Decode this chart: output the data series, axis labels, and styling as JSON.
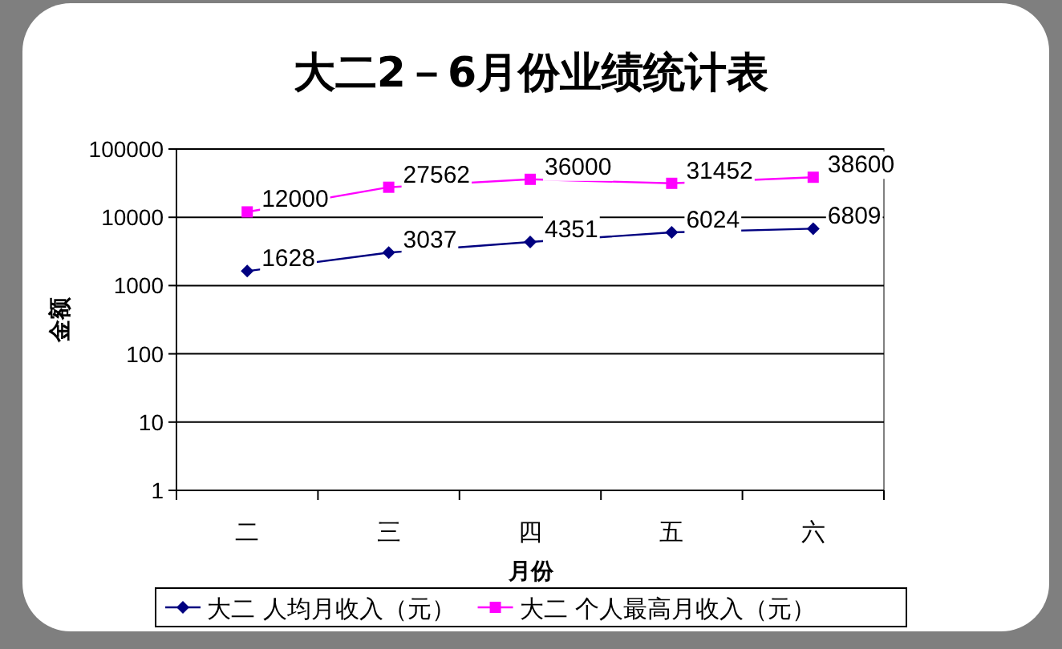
{
  "chart_data": {
    "type": "line",
    "title": "大二2－6月份业绩统计表",
    "xlabel": "月份",
    "ylabel": "金额",
    "categories": [
      "二",
      "三",
      "四",
      "五",
      "六"
    ],
    "series": [
      {
        "name": "大二 人均月收入（元）",
        "color": "#000080",
        "marker": "diamond",
        "values": [
          1628,
          3037,
          4351,
          6024,
          6809
        ]
      },
      {
        "name": "大二 个人最高月收入（元）",
        "color": "#ff00ff",
        "marker": "square",
        "values": [
          12000,
          27562,
          36000,
          31452,
          38600
        ]
      }
    ],
    "log": "y",
    "ylim": [
      1,
      100000
    ],
    "yticks": [
      1,
      10,
      100,
      1000,
      10000,
      100000
    ],
    "grid": "y",
    "legend": "bottom",
    "data_labels": true
  }
}
